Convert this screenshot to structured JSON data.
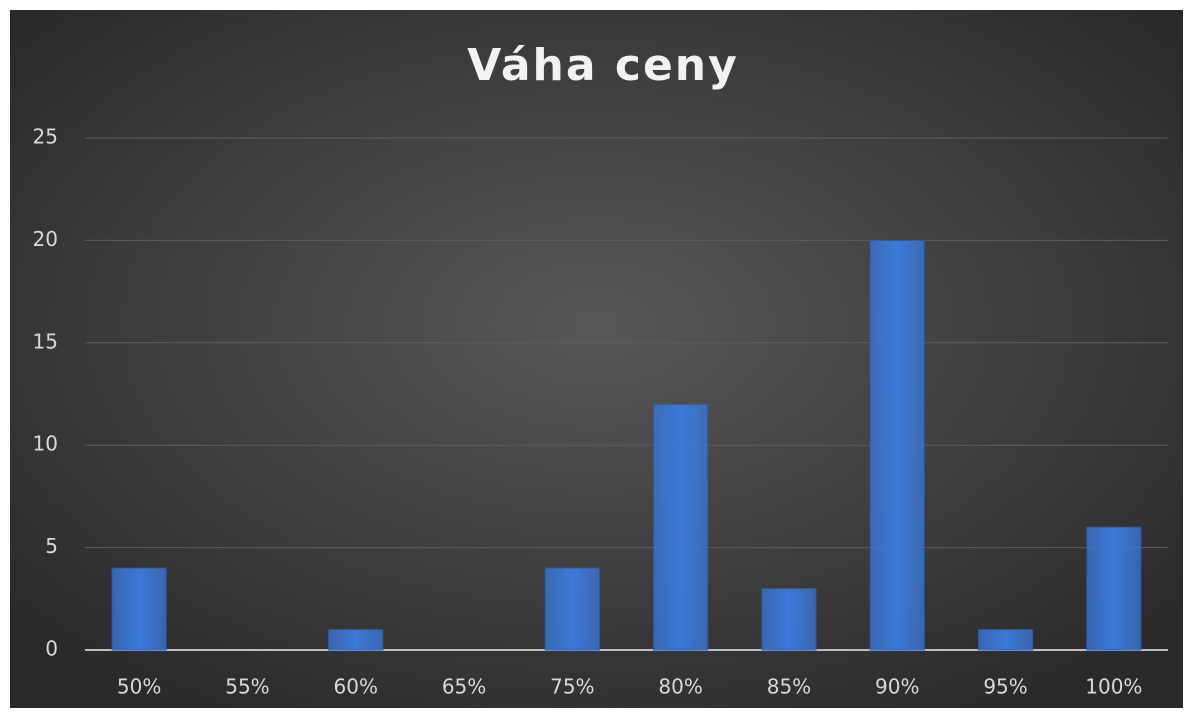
{
  "chart_data": {
    "type": "bar",
    "title": "Váha ceny",
    "categories": [
      "50%",
      "55%",
      "60%",
      "65%",
      "75%",
      "80%",
      "85%",
      "90%",
      "95%",
      "100%"
    ],
    "values": [
      4,
      0,
      1,
      0,
      4,
      12,
      3,
      20,
      1,
      6
    ],
    "color": "#3b78d8",
    "ylim": [
      0,
      25
    ],
    "yticks": [
      0,
      5,
      10,
      15,
      20,
      25
    ],
    "grid": true
  }
}
